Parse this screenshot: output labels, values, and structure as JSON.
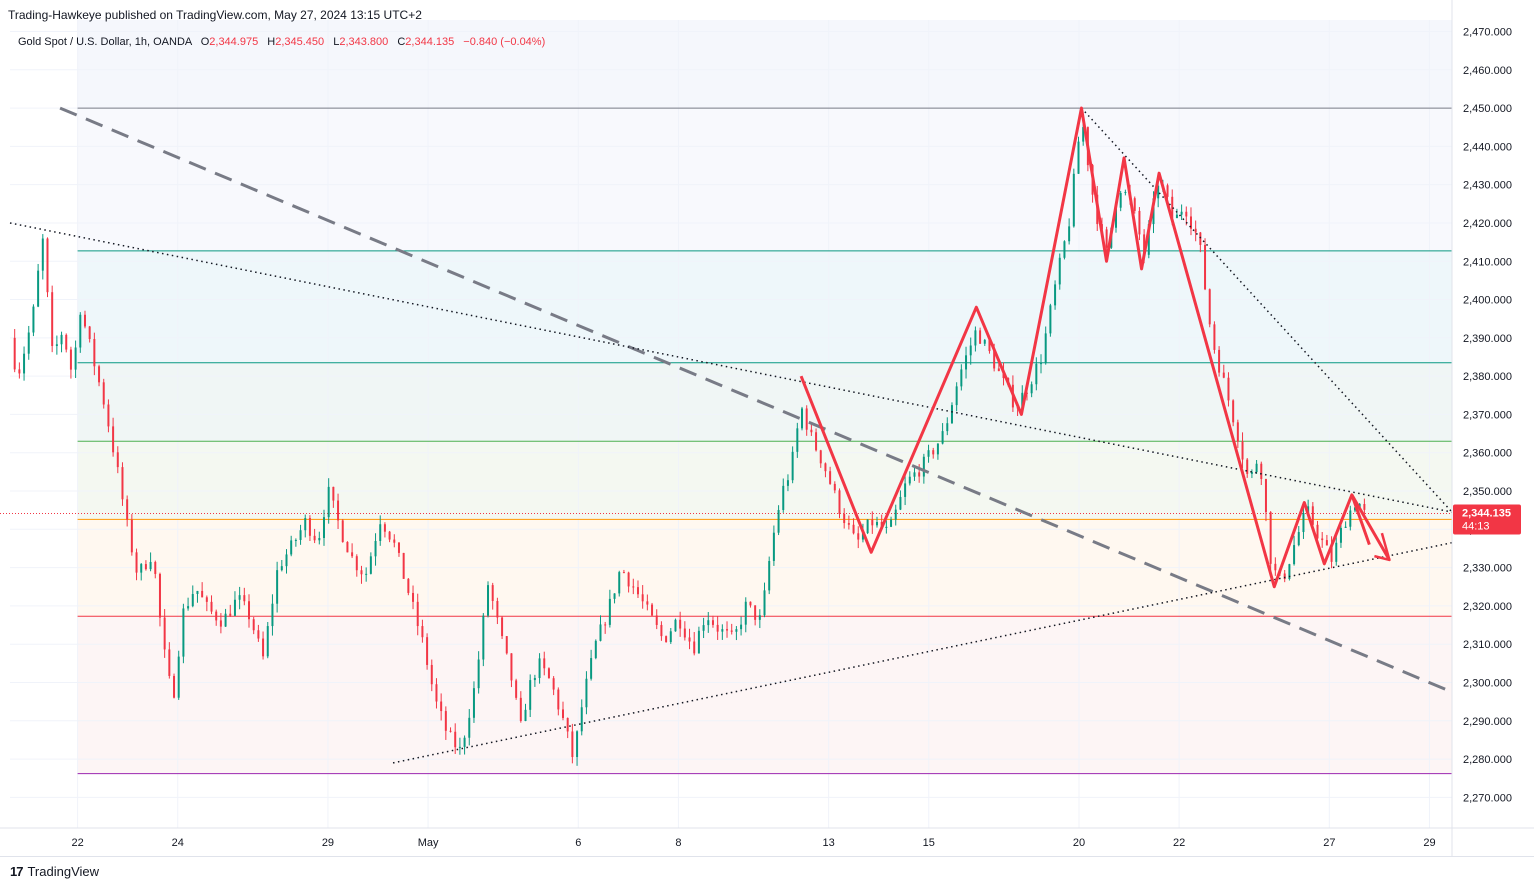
{
  "publisher": "Trading-Hawkeye published on TradingView.com, May 27, 2024 13:15 UTC+2",
  "legend": {
    "symbol": "Gold Spot / U.S. Dollar, 1h, OANDA",
    "open_label": "O",
    "open": "2,344.975",
    "high_label": "H",
    "high": "2,345.450",
    "low_label": "L",
    "low": "2,343.800",
    "close_label": "C",
    "close": "2,344.135",
    "change": "−0.840 (−0.04%)"
  },
  "price_tag": {
    "price": "2,344.135",
    "countdown": "44:13"
  },
  "footer": {
    "brand": "TradingView",
    "logo_mark": "17"
  },
  "colors": {
    "up": "#089981",
    "down": "#f23645",
    "pattern": "#f23645",
    "trend": "#131722",
    "dashed": "#787b86",
    "grid": "#f0f3fa"
  },
  "chart_data": {
    "type": "candlestick",
    "y_axis": {
      "min": 2262,
      "max": 2473,
      "ticks": [
        2270,
        2280,
        2290,
        2300,
        2310,
        2320,
        2330,
        2340,
        2350,
        2360,
        2370,
        2380,
        2390,
        2400,
        2410,
        2420,
        2430,
        2440,
        2450,
        2460,
        2470
      ],
      "tick_labels": [
        "2,270.000",
        "2,280.000",
        "2,290.000",
        "2,300.000",
        "2,310.000",
        "2,320.000",
        "2,330.000",
        "2,340.000",
        "2,350.000",
        "2,360.000",
        "2,370.000",
        "2,380.000",
        "2,390.000",
        "2,400.000",
        "2,410.000",
        "2,420.000",
        "2,430.000",
        "2,440.000",
        "2,450.000",
        "2,460.000",
        "2,470.000"
      ]
    },
    "x_axis": {
      "min": -0.35,
      "max": 28.45,
      "ticks": [
        {
          "t": 1,
          "label": "22"
        },
        {
          "t": 3,
          "label": "24"
        },
        {
          "t": 6,
          "label": "29"
        },
        {
          "t": 8,
          "label": "May"
        },
        {
          "t": 11,
          "label": "6"
        },
        {
          "t": 13,
          "label": "8"
        },
        {
          "t": 16,
          "label": "13"
        },
        {
          "t": 18,
          "label": "15"
        },
        {
          "t": 21,
          "label": "20"
        },
        {
          "t": 23,
          "label": "22"
        },
        {
          "t": 26,
          "label": "27"
        },
        {
          "t": 28,
          "label": "29"
        }
      ]
    },
    "price_path": [
      [
        -0.35,
        2390
      ],
      [
        -0.2,
        2380
      ],
      [
        0.1,
        2395
      ],
      [
        0.3,
        2416
      ],
      [
        0.5,
        2385
      ],
      [
        0.7,
        2392
      ],
      [
        0.9,
        2380
      ],
      [
        1.05,
        2398
      ],
      [
        1.3,
        2385
      ],
      [
        1.55,
        2372
      ],
      [
        1.8,
        2355
      ],
      [
        2.0,
        2340
      ],
      [
        2.2,
        2328
      ],
      [
        2.5,
        2334
      ],
      [
        2.7,
        2310
      ],
      [
        2.9,
        2295
      ],
      [
        3.1,
        2318
      ],
      [
        3.35,
        2325
      ],
      [
        3.6,
        2319
      ],
      [
        3.9,
        2316
      ],
      [
        4.2,
        2322
      ],
      [
        4.45,
        2317
      ],
      [
        4.7,
        2306
      ],
      [
        5.0,
        2330
      ],
      [
        5.3,
        2336
      ],
      [
        5.55,
        2342
      ],
      [
        5.8,
        2337
      ],
      [
        6.0,
        2350
      ],
      [
        6.25,
        2340
      ],
      [
        6.5,
        2332
      ],
      [
        6.75,
        2328
      ],
      [
        7.05,
        2343
      ],
      [
        7.3,
        2337
      ],
      [
        7.6,
        2324
      ],
      [
        7.9,
        2310
      ],
      [
        8.15,
        2295
      ],
      [
        8.4,
        2286
      ],
      [
        8.65,
        2282
      ],
      [
        8.95,
        2300
      ],
      [
        9.2,
        2326
      ],
      [
        9.45,
        2312
      ],
      [
        9.65,
        2302
      ],
      [
        9.85,
        2288
      ],
      [
        10.0,
        2298
      ],
      [
        10.2,
        2305
      ],
      [
        10.45,
        2300
      ],
      [
        10.7,
        2290
      ],
      [
        10.9,
        2280
      ],
      [
        11.1,
        2296
      ],
      [
        11.35,
        2310
      ],
      [
        11.6,
        2319
      ],
      [
        11.85,
        2330
      ],
      [
        12.15,
        2324
      ],
      [
        12.4,
        2318
      ],
      [
        12.7,
        2311
      ],
      [
        13.0,
        2317
      ],
      [
        13.3,
        2309
      ],
      [
        13.55,
        2318
      ],
      [
        13.8,
        2314
      ],
      [
        14.1,
        2311
      ],
      [
        14.35,
        2320
      ],
      [
        14.65,
        2316
      ],
      [
        14.85,
        2335
      ],
      [
        15.05,
        2349
      ],
      [
        15.25,
        2356
      ],
      [
        15.45,
        2372
      ],
      [
        15.65,
        2364
      ],
      [
        15.9,
        2357
      ],
      [
        16.2,
        2346
      ],
      [
        16.55,
        2336
      ],
      [
        16.85,
        2342
      ],
      [
        17.2,
        2339
      ],
      [
        17.55,
        2352
      ],
      [
        17.9,
        2357
      ],
      [
        18.3,
        2365
      ],
      [
        18.6,
        2380
      ],
      [
        18.95,
        2392
      ],
      [
        19.25,
        2385
      ],
      [
        19.5,
        2378
      ],
      [
        19.75,
        2372
      ],
      [
        20.0,
        2378
      ],
      [
        20.25,
        2385
      ],
      [
        20.55,
        2405
      ],
      [
        20.8,
        2420
      ],
      [
        21.05,
        2448
      ],
      [
        21.3,
        2425
      ],
      [
        21.55,
        2412
      ],
      [
        21.8,
        2430
      ],
      [
        22.05,
        2425
      ],
      [
        22.3,
        2412
      ],
      [
        22.6,
        2432
      ],
      [
        22.9,
        2420
      ],
      [
        23.1,
        2425
      ],
      [
        23.4,
        2415
      ],
      [
        23.65,
        2390
      ],
      [
        23.9,
        2378
      ],
      [
        24.15,
        2366
      ],
      [
        24.4,
        2352
      ],
      [
        24.6,
        2360
      ],
      [
        24.85,
        2330
      ],
      [
        25.05,
        2326
      ],
      [
        25.3,
        2336
      ],
      [
        25.55,
        2345
      ],
      [
        25.8,
        2338
      ],
      [
        26.05,
        2332
      ],
      [
        26.3,
        2342
      ],
      [
        26.55,
        2348
      ],
      [
        26.7,
        2344
      ]
    ],
    "horizontal_levels": [
      {
        "price": 2450,
        "color": "#787b86"
      },
      {
        "price": 2412.7,
        "color": "#089981"
      },
      {
        "price": 2383.5,
        "color": "#089981"
      },
      {
        "price": 2363.0,
        "color": "#4caf50"
      },
      {
        "price": 2342.6,
        "color": "#ff9800"
      },
      {
        "price": 2317.3,
        "color": "#f23645"
      },
      {
        "price": 2276.2,
        "color": "#9c27b0"
      }
    ],
    "zones": [
      {
        "from": 2450,
        "to": 2473,
        "color": "#f5f7fc"
      },
      {
        "from": 2412.7,
        "to": 2450,
        "color": "#f8f9fd"
      },
      {
        "from": 2383.5,
        "to": 2412.7,
        "color": "#eef7fa"
      },
      {
        "from": 2363.0,
        "to": 2383.5,
        "color": "#f0f6f5"
      },
      {
        "from": 2342.6,
        "to": 2363.0,
        "color": "#f4f8f1"
      },
      {
        "from": 2317.3,
        "to": 2342.6,
        "color": "#fff8f0"
      },
      {
        "from": 2276.2,
        "to": 2317.3,
        "color": "#fdf5f5"
      }
    ],
    "trendlines": [
      {
        "style": "dashed",
        "points": [
          [
            0.65,
            2450
          ],
          [
            28.45,
            2297.5
          ]
        ]
      },
      {
        "style": "dotted",
        "points": [
          [
            -0.35,
            2420
          ],
          [
            28.45,
            2344.5
          ]
        ]
      },
      {
        "style": "dotted",
        "points": [
          [
            7.3,
            2279
          ],
          [
            28.45,
            2336.5
          ]
        ]
      },
      {
        "style": "dotted",
        "points": [
          [
            21.05,
            2450
          ],
          [
            28.45,
            2344.5
          ]
        ]
      }
    ],
    "pattern": [
      [
        15.45,
        2380
      ],
      [
        16.85,
        2334
      ],
      [
        18.95,
        2398
      ],
      [
        19.85,
        2370
      ],
      [
        21.05,
        2450
      ],
      [
        21.55,
        2410
      ],
      [
        21.9,
        2437
      ],
      [
        22.25,
        2408
      ],
      [
        22.6,
        2433
      ],
      [
        24.9,
        2325
      ],
      [
        25.5,
        2347
      ],
      [
        25.9,
        2331
      ],
      [
        26.45,
        2349
      ],
      [
        26.8,
        2336
      ]
    ],
    "arrow": [
      [
        26.45,
        2349
      ],
      [
        27.2,
        2332
      ]
    ],
    "arrowhead": [
      [
        27.05,
        2339
      ],
      [
        27.2,
        2332
      ],
      [
        26.9,
        2333
      ]
    ]
  }
}
